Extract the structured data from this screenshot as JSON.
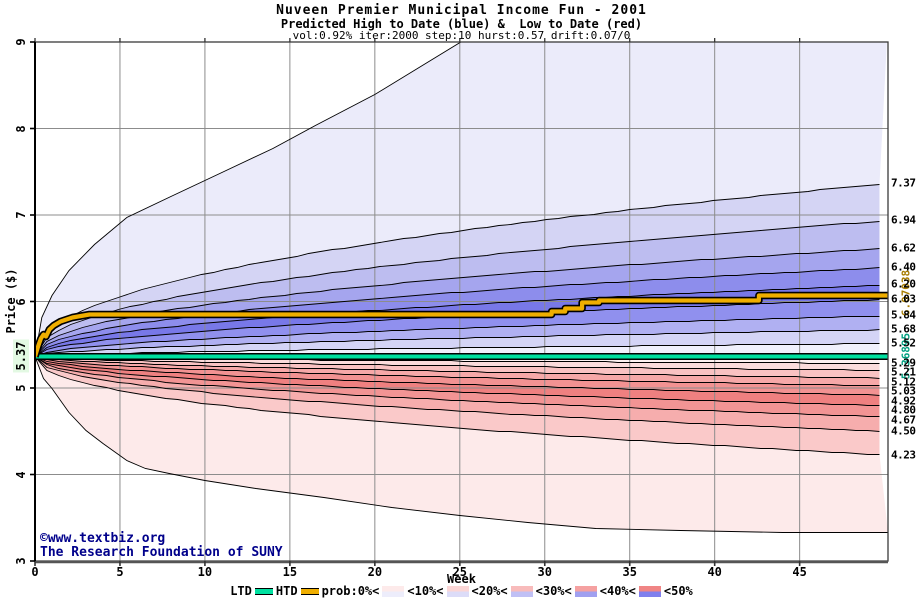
{
  "chart_data": {
    "type": "area",
    "title": "Nuveen Premier Municipal Income Fun - 2001",
    "subtitle": "Predicted High to Date (blue) &  Low to Date (red)",
    "params_line": "vol:0.92% iter:2000 step:10 hurst:0.57 drift:0.07/0",
    "xlabel": "Week",
    "ylabel": "Price ($)",
    "xlim": [
      0,
      50.2
    ],
    "ylim": [
      3,
      9
    ],
    "grid": true,
    "x_ticks": [
      0,
      5,
      10,
      15,
      20,
      25,
      30,
      35,
      40,
      45
    ],
    "y_ticks": [
      3,
      4,
      5,
      6,
      7,
      8,
      9
    ],
    "start_price": 5.37,
    "start_label": "5.37",
    "series": {
      "htd": {
        "name": "HTD",
        "color": "#efae00",
        "final_label": "6.07038",
        "final_label_color": "#a87d00",
        "final_value": 6.07,
        "points": [
          [
            0,
            5.37
          ],
          [
            0.2,
            5.5
          ],
          [
            0.35,
            5.58
          ],
          [
            0.5,
            5.63
          ],
          [
            0.65,
            5.6
          ],
          [
            0.85,
            5.68
          ],
          [
            1.1,
            5.73
          ],
          [
            1.5,
            5.78
          ],
          [
            2.2,
            5.82
          ],
          [
            3.2,
            5.85
          ],
          [
            30.4,
            5.85
          ],
          [
            30.4,
            5.89
          ],
          [
            31.2,
            5.89
          ],
          [
            31.2,
            5.93
          ],
          [
            32.2,
            5.93
          ],
          [
            32.2,
            5.99
          ],
          [
            33.2,
            5.99
          ],
          [
            33.2,
            6.02
          ],
          [
            42.6,
            6.02
          ],
          [
            42.6,
            6.07
          ],
          [
            50.2,
            6.07
          ]
        ]
      },
      "ltd": {
        "name": "LTD",
        "color": "#00e0a0",
        "final_label": "5.36895",
        "final_label_color": "#00a080",
        "value": 5.368
      }
    },
    "high_fan": {
      "envelope": [
        [
          0,
          5.37
        ],
        [
          0.4,
          5.82
        ],
        [
          1,
          6.08
        ],
        [
          2,
          6.36
        ],
        [
          3.5,
          6.67
        ],
        [
          5.4,
          6.98
        ],
        [
          8,
          7.22
        ],
        [
          11,
          7.5
        ],
        [
          14,
          7.78
        ],
        [
          16.5,
          8.04
        ],
        [
          20,
          8.4
        ],
        [
          25.4,
          9.05
        ],
        [
          27,
          9.25
        ],
        [
          50.2,
          9.25
        ]
      ],
      "contours": [
        {
          "end": 7.37,
          "exp": 0.46,
          "label": "7.37"
        },
        {
          "end": 6.94,
          "exp": 0.46,
          "label": "6.94"
        },
        {
          "end": 6.62,
          "exp": 0.46,
          "label": "6.62"
        },
        {
          "end": 6.4,
          "exp": 0.47,
          "label": "6.40"
        },
        {
          "end": 6.2,
          "exp": 0.48,
          "label": "6.20"
        },
        {
          "end": 6.03,
          "exp": 0.5,
          "label": "6.03"
        },
        {
          "end": 5.84,
          "exp": 0.52,
          "label": "5.84"
        },
        {
          "end": 5.68,
          "exp": 0.55,
          "label": "5.68"
        },
        {
          "end": 5.52,
          "exp": 0.6,
          "label": "5.52"
        },
        {
          "end": 5.4,
          "exp": 0.8,
          "label": ""
        }
      ],
      "band_colors": [
        "#ebebfa",
        "#d4d4f4",
        "#bdbdf0",
        "#a5a5ee",
        "#8d8dec",
        "#7878e8",
        "#9090ee",
        "#b0b0f2",
        "#d4d4f6",
        "#f0f0fc",
        "#ffffff"
      ]
    },
    "low_fan": {
      "envelope": [
        [
          0,
          5.37
        ],
        [
          0.5,
          5.12
        ],
        [
          1,
          5.0
        ],
        [
          2,
          4.72
        ],
        [
          3,
          4.52
        ],
        [
          4,
          4.36
        ],
        [
          5.4,
          4.17
        ],
        [
          6.5,
          4.08
        ],
        [
          7.9,
          4.02
        ],
        [
          10,
          3.94
        ],
        [
          13,
          3.84
        ],
        [
          17,
          3.74
        ],
        [
          21,
          3.62
        ],
        [
          25,
          3.53
        ],
        [
          29,
          3.45
        ],
        [
          33,
          3.38
        ],
        [
          38,
          3.355
        ],
        [
          44,
          3.34
        ],
        [
          50.2,
          3.33
        ]
      ],
      "contours": [
        {
          "end": 5.34,
          "exp": 0.8,
          "label": ""
        },
        {
          "end": 5.29,
          "exp": 0.6,
          "label": "5.29"
        },
        {
          "end": 5.21,
          "exp": 0.55,
          "label": "5.21"
        },
        {
          "end": 5.12,
          "exp": 0.52,
          "label": "5.12"
        },
        {
          "end": 5.03,
          "exp": 0.5,
          "label": "5.03"
        },
        {
          "end": 4.92,
          "exp": 0.48,
          "label": "4.92"
        },
        {
          "end": 4.8,
          "exp": 0.47,
          "label": "4.80"
        },
        {
          "end": 4.67,
          "exp": 0.46,
          "label": "4.67"
        },
        {
          "end": 4.5,
          "exp": 0.46,
          "label": "4.50"
        },
        {
          "end": 4.23,
          "exp": 0.46,
          "label": "4.23"
        }
      ],
      "band_colors": [
        "#ffffff",
        "#fdf1f1",
        "#fbdcdc",
        "#f9c2c2",
        "#f6a8a8",
        "#f29292",
        "#ef8080",
        "#f29494",
        "#f6adad",
        "#fac9c9",
        "#fdeaea"
      ]
    },
    "legend": {
      "tokens": [
        {
          "type": "label",
          "text": "LTD"
        },
        {
          "type": "line",
          "color": "#00e0a0"
        },
        {
          "type": "label",
          "text": "HTD"
        },
        {
          "type": "line",
          "color": "#efae00"
        },
        {
          "type": "label",
          "text": "prob:0%<"
        },
        {
          "type": "swatch",
          "red": "#fdeaea",
          "blue": "#ededfb"
        },
        {
          "type": "label",
          "text": "<10%<"
        },
        {
          "type": "swatch",
          "red": "#fbd6d6",
          "blue": "#dcdcf8"
        },
        {
          "type": "label",
          "text": "<20%<"
        },
        {
          "type": "swatch",
          "red": "#f8bbbb",
          "blue": "#c0c0f5"
        },
        {
          "type": "label",
          "text": "<30%<"
        },
        {
          "type": "swatch",
          "red": "#f5a1a1",
          "blue": "#a0a0f0"
        },
        {
          "type": "label",
          "text": "<40%<"
        },
        {
          "type": "swatch",
          "red": "#f08585",
          "blue": "#8080ee"
        },
        {
          "type": "label",
          "text": "<50%"
        }
      ]
    },
    "credits": {
      "line1": "©www.textbiz.org",
      "line2": "The Research Foundation of SUNY",
      "color": "#00008b"
    },
    "colors": {
      "grid": "#8c8c8c",
      "contour": "#000000",
      "border": "#3a3a3a"
    }
  }
}
